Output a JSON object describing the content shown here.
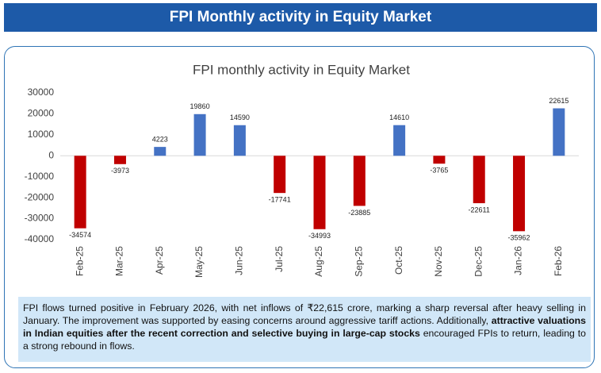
{
  "header": {
    "title": "FPI Monthly activity in Equity Market"
  },
  "chart_data": {
    "type": "bar",
    "title": "FPI monthly activity in Equity Market",
    "categories": [
      "Feb-25",
      "Mar-25",
      "Apr-25",
      "May-25",
      "Jun-25",
      "Jul-25",
      "Aug-25",
      "Sep-25",
      "Oct-25",
      "Nov-25",
      "Dec-25",
      "Jan-26",
      "Feb-26"
    ],
    "values": [
      -34574,
      -3973,
      4223,
      19860,
      14590,
      -17741,
      -34993,
      -23885,
      14610,
      -3765,
      -22611,
      -35962,
      22615
    ],
    "colors": [
      "#c00000",
      "#c00000",
      "#4472c4",
      "#4472c4",
      "#4472c4",
      "#c00000",
      "#c00000",
      "#c00000",
      "#4472c4",
      "#c00000",
      "#c00000",
      "#c00000",
      "#4472c4"
    ],
    "ylim": [
      -40000,
      30000
    ],
    "yticks": [
      -40000,
      -30000,
      -20000,
      -10000,
      0,
      10000,
      20000,
      30000
    ],
    "grid": false,
    "data_labels": true
  },
  "note": {
    "parts": [
      {
        "text": "FPI flows turned positive in February 2026, with net inflows of ₹22,615 crore, marking a sharp reversal after heavy selling in January. The improvement was supported by easing concerns around aggressive tariff actions. Additionally, ",
        "bold": false
      },
      {
        "text": "attractive valuations in Indian equities after the recent correction and selective buying in large-cap stocks",
        "bold": true
      },
      {
        "text": " encouraged FPIs to return, leading to a strong rebound in flows.",
        "bold": false
      }
    ]
  }
}
